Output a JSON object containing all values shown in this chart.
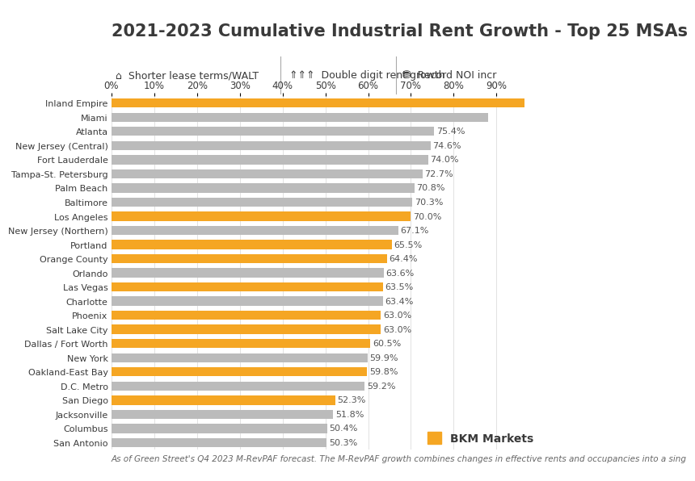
{
  "title": "2021-2023 Cumulative Industrial Rent Growth - Top 25 MSAs",
  "subtitle_items": [
    "Shorter lease terms/WALT",
    "Double digit rent growth",
    "Record NOI incr"
  ],
  "footnote": "As of Green Street's Q4 2023 M-RevPAF forecast. The M-RevPAF growth combines changes in effective rents and occupancies into a sing",
  "legend_label": "BKM Markets",
  "categories": [
    "Inland Empire",
    "Miami",
    "Atlanta",
    "New Jersey (Central)",
    "Fort Lauderdale",
    "Tampa-St. Petersburg",
    "Palm Beach",
    "Baltimore",
    "Los Angeles",
    "New Jersey (Northern)",
    "Portland",
    "Orange County",
    "Orlando",
    "Las Vegas",
    "Charlotte",
    "Phoenix",
    "Salt Lake City",
    "Dallas / Fort Worth",
    "New York",
    "Oakland-East Bay",
    "D.C. Metro",
    "San Diego",
    "Jacksonville",
    "Columbus",
    "San Antonio"
  ],
  "values": [
    96.5,
    88.0,
    75.4,
    74.6,
    74.0,
    72.7,
    70.8,
    70.3,
    70.0,
    67.1,
    65.5,
    64.4,
    63.6,
    63.5,
    63.4,
    63.0,
    63.0,
    60.5,
    59.9,
    59.8,
    59.2,
    52.3,
    51.8,
    50.4,
    50.3
  ],
  "labels": [
    "",
    "",
    "75.4%",
    "74.6%",
    "74.0%",
    "72.7%",
    "70.8%",
    "70.3%",
    "70.0%",
    "67.1%",
    "65.5%",
    "64.4%",
    "63.6%",
    "63.5%",
    "63.4%",
    "63.0%",
    "63.0%",
    "60.5%",
    "59.9%",
    "59.8%",
    "59.2%",
    "52.3%",
    "51.8%",
    "50.4%",
    "50.3%"
  ],
  "is_bkm": [
    true,
    false,
    false,
    false,
    false,
    false,
    false,
    false,
    true,
    false,
    true,
    true,
    false,
    true,
    false,
    true,
    true,
    true,
    false,
    true,
    false,
    true,
    false,
    false,
    false
  ],
  "bkm_color": "#F5A623",
  "other_color": "#BBBBBB",
  "background_color": "#FFFFFF",
  "title_color": "#3A3A3A",
  "text_color": "#3A3A3A",
  "label_color": "#555555",
  "xlim_max": 100,
  "xtick_values": [
    0,
    10,
    20,
    30,
    40,
    50,
    60,
    70,
    80,
    90
  ],
  "xtick_labels": [
    "0%",
    "10%",
    "20%",
    "30%",
    "40%",
    "50%",
    "60%",
    "70%",
    "80%",
    "90%"
  ],
  "bar_height": 0.65,
  "title_fontsize": 15,
  "label_fontsize": 8.0,
  "tick_fontsize": 8.5,
  "footnote_fontsize": 7.5,
  "header_fontsize": 9.0
}
